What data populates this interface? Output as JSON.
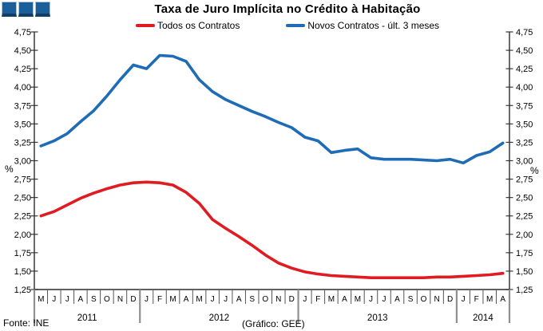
{
  "header": {
    "title": "Taxa de Juro Implícita no Crédito à Habitação",
    "logo_color": "#1a5f9a"
  },
  "legend": [
    {
      "label": "Todos os Contratos",
      "color": "#e01b22"
    },
    {
      "label": "Novos Contratos - últ. 3 meses",
      "color": "#1e6cb5"
    }
  ],
  "footer": {
    "source": "Fonte: INE",
    "credit": "(Gráfico: GEE)"
  },
  "chart_data": {
    "type": "line",
    "title": "Taxa de Juro Implícita no Crédito à Habitação",
    "unit_label": "%",
    "ylim": [
      1.25,
      4.75
    ],
    "ytick_step": 0.25,
    "grid": false,
    "legend_position": "top",
    "x_months": [
      "M",
      "J",
      "J",
      "A",
      "S",
      "O",
      "N",
      "D",
      "J",
      "F",
      "M",
      "A",
      "M",
      "J",
      "J",
      "A",
      "S",
      "O",
      "N",
      "D",
      "J",
      "F",
      "M",
      "A",
      "M",
      "J",
      "J",
      "A",
      "S",
      "O",
      "N",
      "D",
      "J",
      "F",
      "M",
      "A"
    ],
    "years": [
      {
        "label": "2011",
        "span": 8
      },
      {
        "label": "2012",
        "span": 12
      },
      {
        "label": "2013",
        "span": 12
      },
      {
        "label": "2014",
        "span": 4
      }
    ],
    "series": [
      {
        "name": "Todos os Contratos",
        "color": "#e01b22",
        "values": [
          2.25,
          2.31,
          2.4,
          2.49,
          2.56,
          2.62,
          2.67,
          2.7,
          2.71,
          2.7,
          2.67,
          2.57,
          2.42,
          2.2,
          2.08,
          1.97,
          1.85,
          1.72,
          1.61,
          1.54,
          1.49,
          1.46,
          1.44,
          1.43,
          1.42,
          1.41,
          1.41,
          1.41,
          1.41,
          1.41,
          1.42,
          1.42,
          1.43,
          1.44,
          1.45,
          1.47
        ]
      },
      {
        "name": "Novos Contratos - últ. 3 meses",
        "color": "#1e6cb5",
        "values": [
          3.2,
          3.27,
          3.37,
          3.53,
          3.68,
          3.88,
          4.1,
          4.3,
          4.25,
          4.43,
          4.42,
          4.35,
          4.1,
          3.94,
          3.83,
          3.75,
          3.67,
          3.6,
          3.52,
          3.45,
          3.32,
          3.27,
          3.11,
          3.14,
          3.16,
          3.04,
          3.02,
          3.02,
          3.02,
          3.01,
          3.0,
          3.02,
          2.97,
          3.07,
          3.12,
          3.24
        ]
      }
    ]
  }
}
